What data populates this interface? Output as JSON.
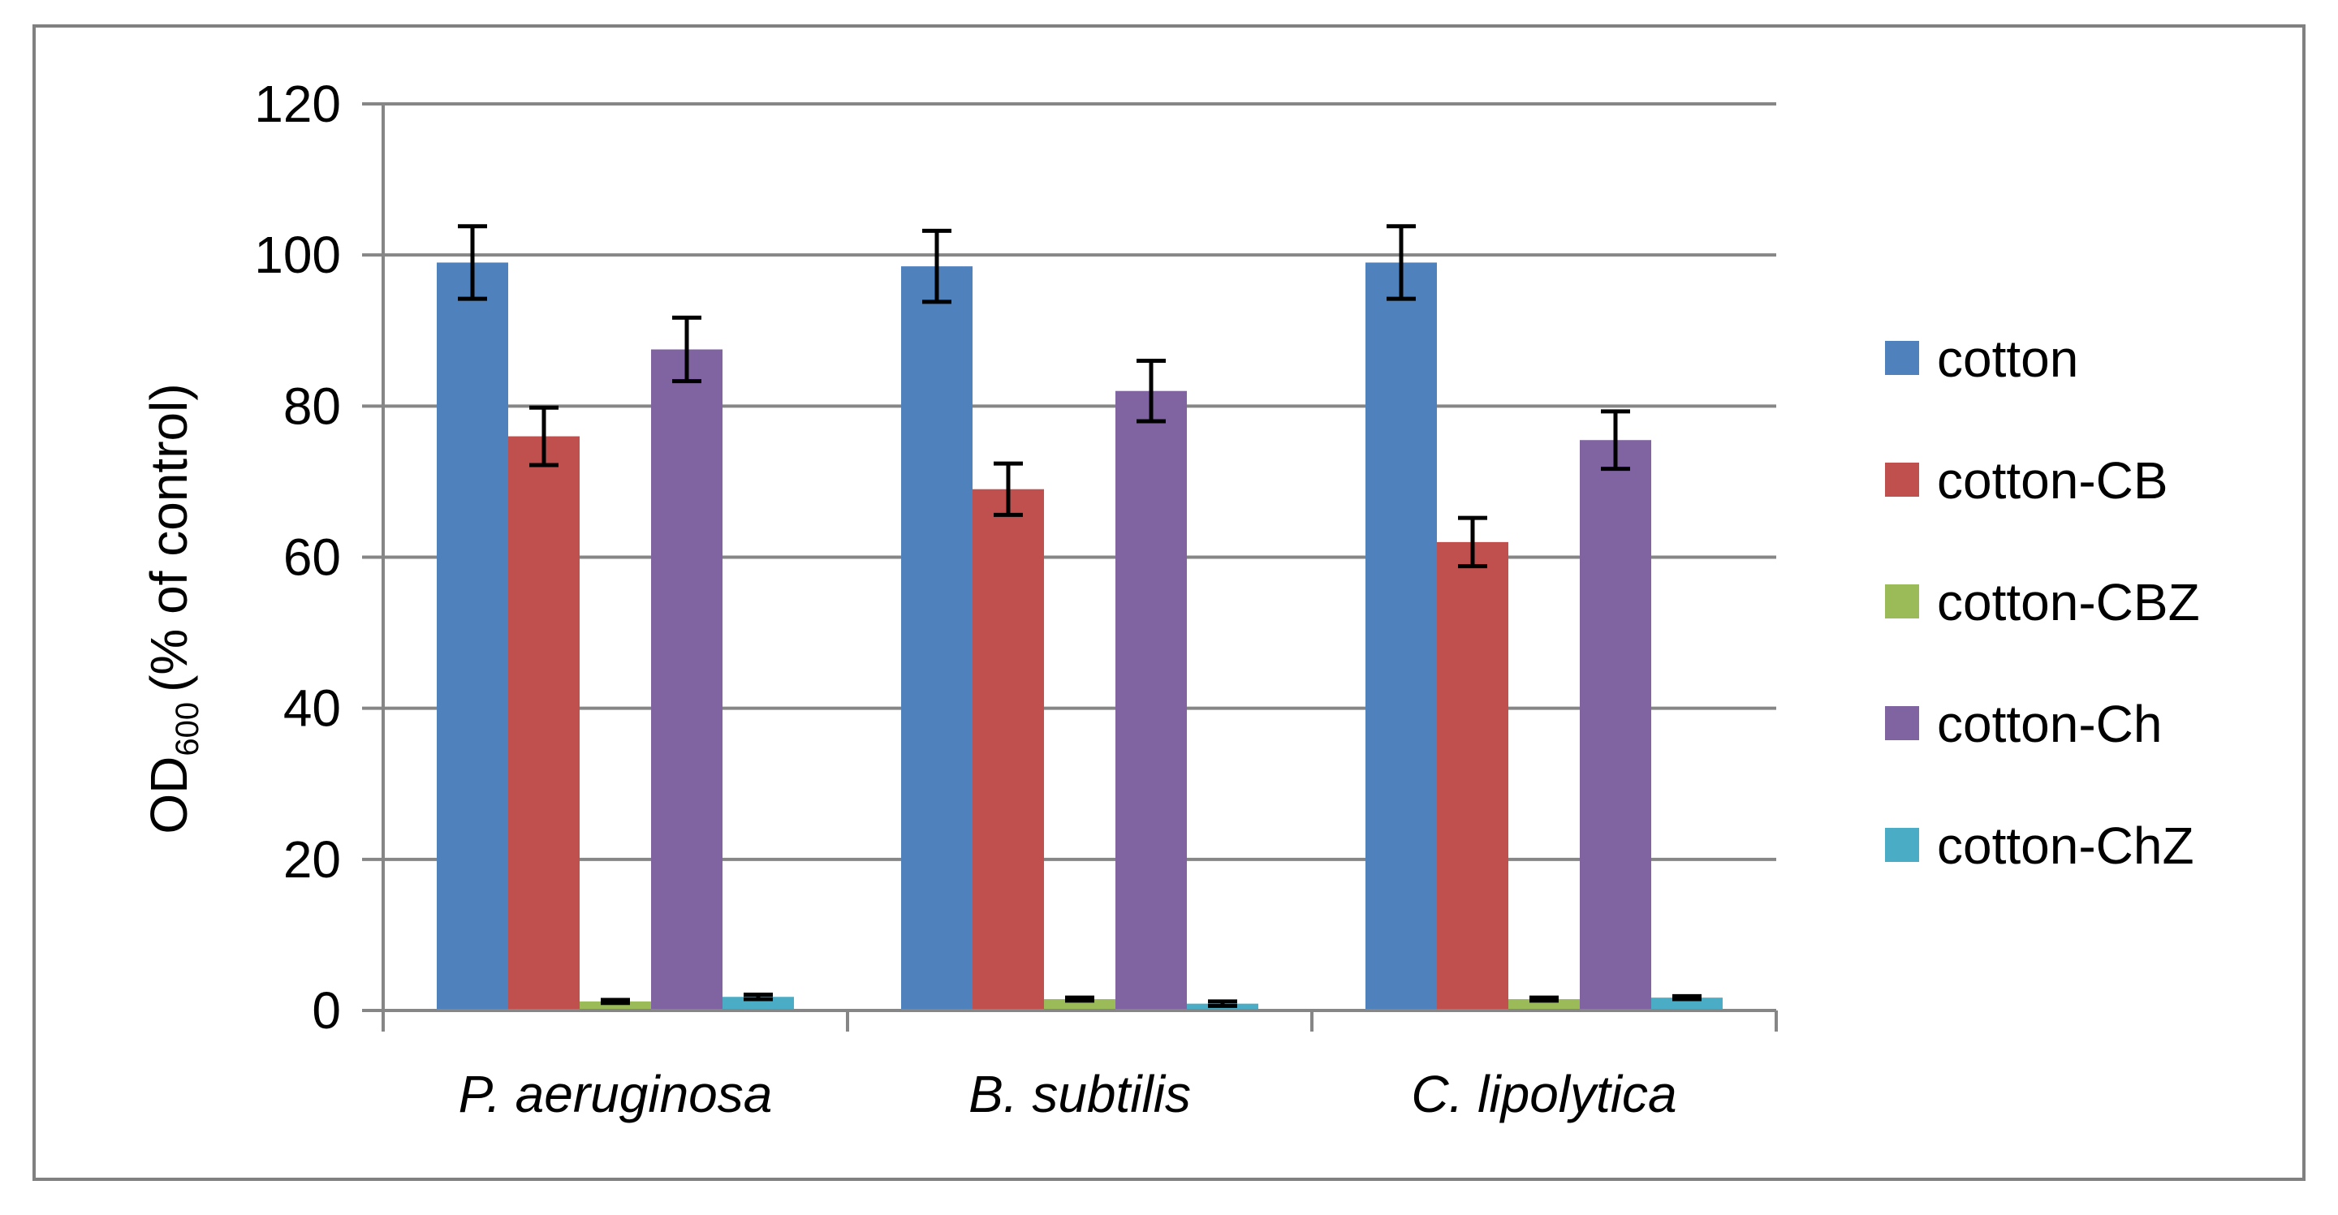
{
  "chart_data": {
    "type": "bar",
    "title": "",
    "xlabel": "",
    "ylabel": "(% of control)",
    "ylabel_prefix": "OD",
    "ylabel_subscript": "600",
    "ylim": [
      0,
      120
    ],
    "yticks": [
      0,
      20,
      40,
      60,
      80,
      100,
      120
    ],
    "grid": true,
    "legend_position": "right",
    "categories": [
      "P. aeruginosa",
      "B. subtilis",
      "C. lipolytica"
    ],
    "series": [
      {
        "name": "cotton",
        "color": "#4F81BD",
        "values": [
          99,
          98.5,
          99
        ],
        "errors": [
          4.8,
          4.7,
          4.8
        ]
      },
      {
        "name": "cotton-CB",
        "color": "#C0504D",
        "values": [
          76,
          69,
          62
        ],
        "errors": [
          3.8,
          3.4,
          3.2
        ]
      },
      {
        "name": "cotton-CBZ",
        "color": "#9BBB59",
        "values": [
          1.2,
          1.5,
          1.5
        ],
        "errors": [
          0.2,
          0.2,
          0.2
        ]
      },
      {
        "name": "cotton-Ch",
        "color": "#8064A2",
        "values": [
          87.5,
          82,
          75.5
        ],
        "errors": [
          4.2,
          4.0,
          3.8
        ]
      },
      {
        "name": "cotton-ChZ",
        "color": "#4BACC6",
        "values": [
          1.8,
          0.9,
          1.7
        ],
        "errors": [
          0.3,
          0.3,
          0.2
        ]
      }
    ]
  }
}
